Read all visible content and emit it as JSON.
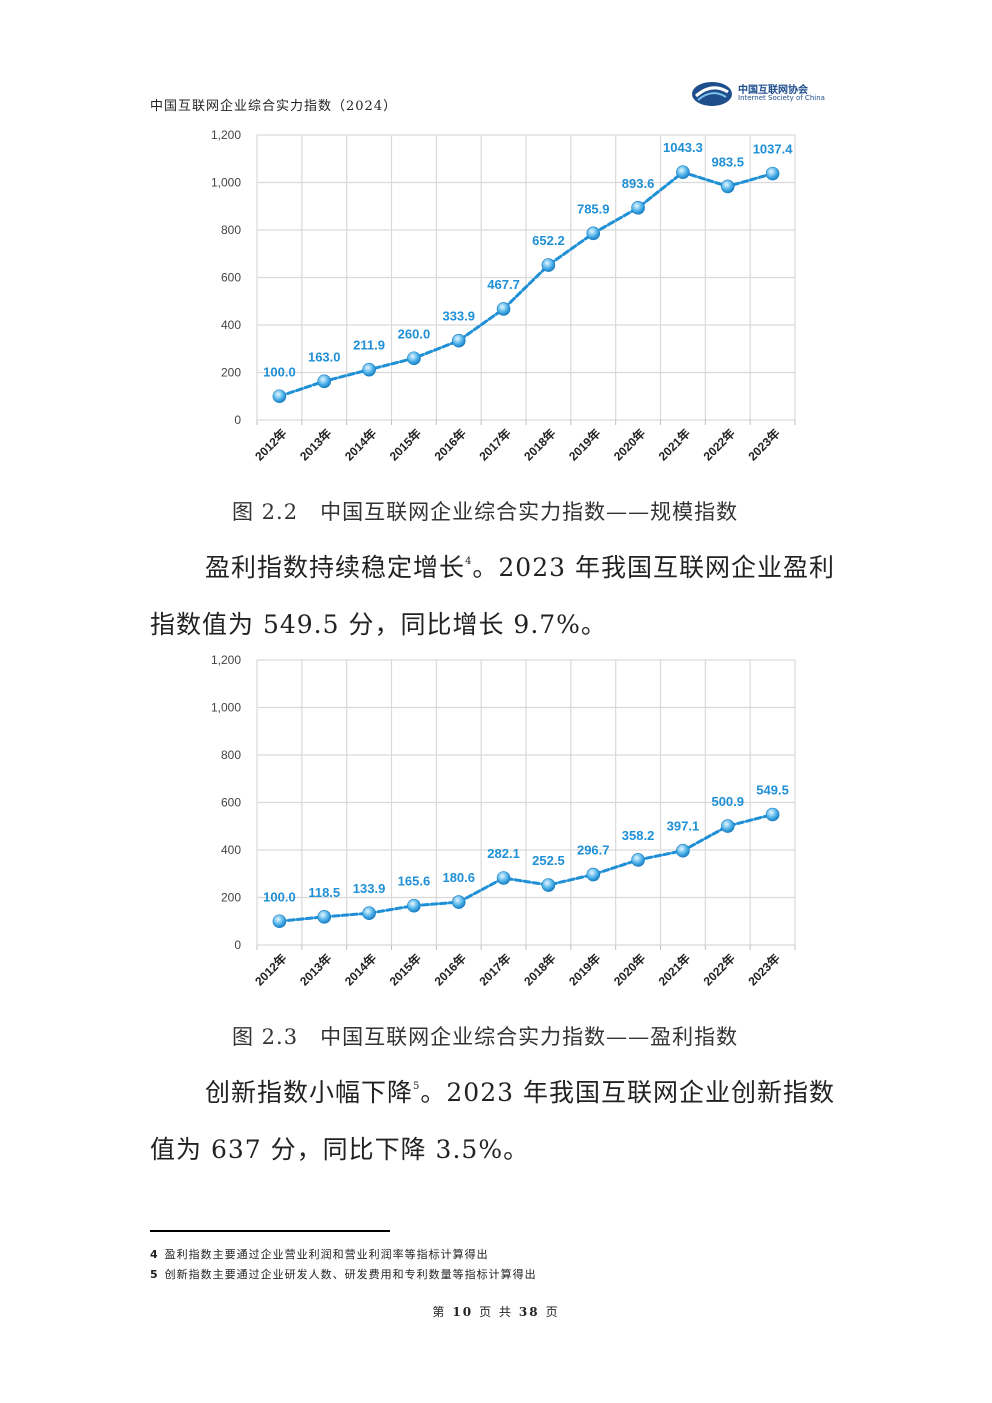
{
  "header": {
    "title": "中国互联网企业综合实力指数（2024）",
    "logo_cn": "中国互联网协会",
    "logo_en": "Internet Society of China"
  },
  "chart_data": [
    {
      "type": "line",
      "title": "",
      "categories": [
        "2012年",
        "2013年",
        "2014年",
        "2015年",
        "2016年",
        "2017年",
        "2018年",
        "2019年",
        "2020年",
        "2021年",
        "2022年",
        "2023年"
      ],
      "values": [
        100.0,
        163.0,
        211.9,
        260.0,
        333.9,
        467.7,
        652.2,
        785.9,
        893.6,
        1043.3,
        983.5,
        1037.4
      ],
      "value_labels": [
        "100.0",
        "163.0",
        "211.9",
        "260.0",
        "333.9",
        "467.7",
        "652.2",
        "785.9",
        "893.6",
        "1043.3",
        "983.5",
        "1037.4"
      ],
      "ylim": [
        0,
        1200
      ],
      "yticks": [
        "0",
        "200",
        "400",
        "600",
        "800",
        "1,000",
        "1,200"
      ],
      "grid": true,
      "colors": {
        "line": "#1f8fd6",
        "label": "#1f8fd6"
      }
    },
    {
      "type": "line",
      "title": "",
      "categories": [
        "2012年",
        "2013年",
        "2014年",
        "2015年",
        "2016年",
        "2017年",
        "2018年",
        "2019年",
        "2020年",
        "2021年",
        "2022年",
        "2023年"
      ],
      "values": [
        100.0,
        118.5,
        133.9,
        165.6,
        180.6,
        282.1,
        252.5,
        296.7,
        358.2,
        397.1,
        500.9,
        549.5
      ],
      "value_labels": [
        "100.0",
        "118.5",
        "133.9",
        "165.6",
        "180.6",
        "282.1",
        "252.5",
        "296.7",
        "358.2",
        "397.1",
        "500.9",
        "549.5"
      ],
      "ylim": [
        0,
        1200
      ],
      "yticks": [
        "0",
        "200",
        "400",
        "600",
        "800",
        "1,000",
        "1,200"
      ],
      "grid": true,
      "colors": {
        "line": "#1f8fd6",
        "label": "#1f8fd6"
      }
    }
  ],
  "captions": {
    "fig1": "图 2.2　中国互联网企业综合实力指数——规模指数",
    "fig2": "图 2.3　中国互联网企业综合实力指数——盈利指数"
  },
  "paragraphs": {
    "p1_line1": "盈利指数持续稳定增长",
    "p1_sup": "4",
    "p1_line1_rest": "。2023 年我国互联网企业盈利",
    "p1_line2": "指数值为 549.5 分，同比增长 9.7%。",
    "p2_line1": "创新指数小幅下降",
    "p2_sup": "5",
    "p2_line1_rest": "。2023 年我国互联网企业创新指数",
    "p2_line2": "值为 637 分，同比下降 3.5%。"
  },
  "footnotes": [
    {
      "num": "4",
      "text": "盈利指数主要通过企业营业利润和营业利润率等指标计算得出"
    },
    {
      "num": "5",
      "text": "创新指数主要通过企业研发人数、研发费用和专利数量等指标计算得出"
    }
  ],
  "page": {
    "prefix": "第",
    "current": "10",
    "middle": "页 共",
    "total": "38",
    "suffix": "页"
  }
}
